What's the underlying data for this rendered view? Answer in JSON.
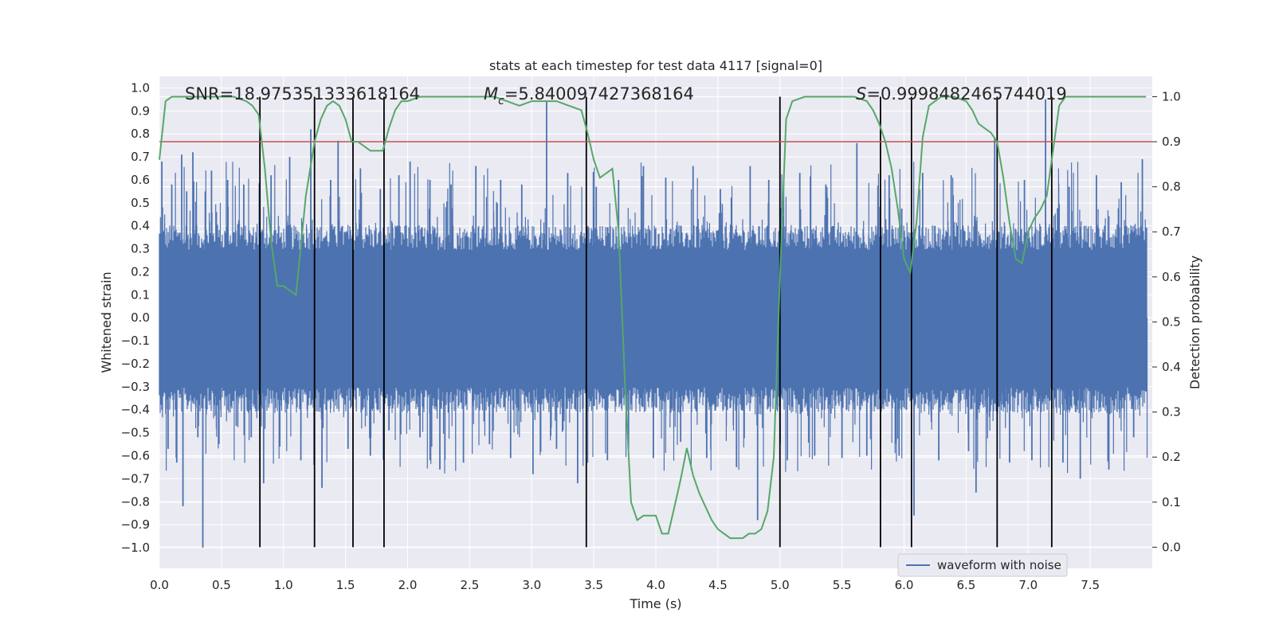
{
  "chart_data": {
    "type": "line",
    "title": "stats at each timestep for test data 4117 [signal=0]",
    "xlabel": "Time (s)",
    "ylabel": "Whitened strain",
    "y2label": "Detection probability",
    "xlim": [
      0.0,
      8.0
    ],
    "ylim": [
      -1.09,
      1.05
    ],
    "y2lim": [
      -0.047,
      1.045
    ],
    "x_ticks": [
      "0.0",
      "0.5",
      "1.0",
      "1.5",
      "2.0",
      "2.5",
      "3.0",
      "3.5",
      "4.0",
      "4.5",
      "5.0",
      "5.5",
      "6.0",
      "6.5",
      "7.0",
      "7.5"
    ],
    "x_tick_values": [
      0.0,
      0.5,
      1.0,
      1.5,
      2.0,
      2.5,
      3.0,
      3.5,
      4.0,
      4.5,
      5.0,
      5.5,
      6.0,
      6.5,
      7.0,
      7.5
    ],
    "y_ticks": [
      "1.0",
      "0.9",
      "0.8",
      "0.7",
      "0.6",
      "0.5",
      "0.4",
      "0.3",
      "0.2",
      "0.1",
      "0.0",
      "−0.1",
      "−0.2",
      "−0.3",
      "−0.4",
      "−0.5",
      "−0.6",
      "−0.7",
      "−0.8",
      "−0.9",
      "−1.0"
    ],
    "y_tick_values": [
      1.0,
      0.9,
      0.8,
      0.7,
      0.6,
      0.5,
      0.4,
      0.3,
      0.2,
      0.1,
      0.0,
      -0.1,
      -0.2,
      -0.3,
      -0.4,
      -0.5,
      -0.6,
      -0.7,
      -0.8,
      -0.9,
      -1.0
    ],
    "y2_ticks": [
      "1.0",
      "0.9",
      "0.8",
      "0.7",
      "0.6",
      "0.5",
      "0.4",
      "0.3",
      "0.2",
      "0.1",
      "0.0"
    ],
    "y2_tick_values": [
      1.0,
      0.9,
      0.8,
      0.7,
      0.6,
      0.5,
      0.4,
      0.3,
      0.2,
      0.1,
      0.0
    ],
    "annotations": {
      "snr": "SNR=18.975351333618164",
      "mc_symbol": "M",
      "mc_subscript": "c",
      "mc_value": "=5.840097427368164",
      "s_symbol": "S",
      "s_value": "=0.9998482465744019"
    },
    "legend": {
      "label": "waveform with noise",
      "location": "lower-right"
    },
    "threshold": 0.9,
    "vertical_markers": [
      0.81,
      1.25,
      1.56,
      1.81,
      3.44,
      5.0,
      5.81,
      6.06,
      6.75,
      7.19
    ],
    "waveform": {
      "name": "waveform with noise",
      "color": "#4c72b0",
      "x_range": [
        0.0,
        7.96
      ],
      "band_upper": 0.36,
      "band_lower": -0.37,
      "spikes": [
        [
          0.02,
          0.68
        ],
        [
          0.07,
          -0.57
        ],
        [
          0.1,
          0.58
        ],
        [
          0.14,
          -0.63
        ],
        [
          0.18,
          0.71
        ],
        [
          0.19,
          -0.82
        ],
        [
          0.22,
          0.55
        ],
        [
          0.27,
          0.72
        ],
        [
          0.31,
          -0.52
        ],
        [
          0.35,
          -1.0
        ],
        [
          0.37,
          0.55
        ],
        [
          0.42,
          0.64
        ],
        [
          0.48,
          -0.55
        ],
        [
          0.55,
          0.6
        ],
        [
          0.62,
          -0.47
        ],
        [
          0.68,
          0.58
        ],
        [
          0.74,
          -0.52
        ],
        [
          0.84,
          -0.72
        ],
        [
          0.9,
          0.62
        ],
        [
          0.97,
          -0.56
        ],
        [
          1.05,
          0.7
        ],
        [
          1.14,
          -0.62
        ],
        [
          1.22,
          0.82
        ],
        [
          1.31,
          -0.74
        ],
        [
          1.38,
          0.6
        ],
        [
          1.44,
          0.77
        ],
        [
          1.52,
          -0.57
        ],
        [
          1.62,
          0.65
        ],
        [
          1.7,
          -0.6
        ],
        [
          1.78,
          0.56
        ],
        [
          1.85,
          -0.49
        ],
        [
          1.93,
          0.62
        ],
        [
          2.02,
          0.68
        ],
        [
          2.1,
          -0.52
        ],
        [
          2.18,
          0.6
        ],
        [
          2.26,
          -0.66
        ],
        [
          2.35,
          0.58
        ],
        [
          2.45,
          -0.63
        ],
        [
          2.55,
          0.66
        ],
        [
          2.66,
          -0.55
        ],
        [
          2.75,
          0.6
        ],
        [
          2.83,
          -0.61
        ],
        [
          2.92,
          0.58
        ],
        [
          3.01,
          -0.68
        ],
        [
          3.12,
          0.94
        ],
        [
          3.2,
          -0.57
        ],
        [
          3.29,
          0.63
        ],
        [
          3.37,
          -0.72
        ],
        [
          3.52,
          0.57
        ],
        [
          3.61,
          -0.62
        ],
        [
          3.7,
          0.6
        ],
        [
          3.78,
          -0.57
        ],
        [
          3.9,
          0.66
        ],
        [
          3.98,
          -0.61
        ],
        [
          4.08,
          0.61
        ],
        [
          4.2,
          -0.54
        ],
        [
          4.3,
          0.66
        ],
        [
          4.41,
          -0.61
        ],
        [
          4.52,
          0.56
        ],
        [
          4.65,
          -0.65
        ],
        [
          4.76,
          0.66
        ],
        [
          4.82,
          -0.88
        ],
        [
          4.91,
          0.6
        ],
        [
          5.06,
          -0.62
        ],
        [
          5.16,
          0.63
        ],
        [
          5.28,
          -0.6
        ],
        [
          5.37,
          0.58
        ],
        [
          5.5,
          -0.61
        ],
        [
          5.62,
          0.76
        ],
        [
          5.7,
          -0.6
        ],
        [
          5.88,
          0.62
        ],
        [
          5.96,
          -0.6
        ],
        [
          6.08,
          -0.86
        ],
        [
          6.15,
          0.63
        ],
        [
          6.28,
          -0.62
        ],
        [
          6.38,
          0.62
        ],
        [
          6.52,
          -0.58
        ],
        [
          6.58,
          -0.76
        ],
        [
          6.73,
          0.78
        ],
        [
          6.85,
          -0.63
        ],
        [
          6.97,
          0.6
        ],
        [
          7.03,
          -0.62
        ],
        [
          7.14,
          0.95
        ],
        [
          7.28,
          -0.63
        ],
        [
          7.33,
          0.57
        ],
        [
          7.42,
          -0.7
        ],
        [
          7.55,
          0.62
        ],
        [
          7.65,
          -0.66
        ],
        [
          7.75,
          0.59
        ],
        [
          7.85,
          -0.52
        ],
        [
          7.92,
          0.69
        ]
      ]
    },
    "detection_probability": {
      "name": "Detection probability",
      "color": "#55a868",
      "x": [
        0.0,
        0.05,
        0.1,
        0.2,
        0.3,
        0.4,
        0.5,
        0.6,
        0.7,
        0.75,
        0.8,
        0.85,
        0.9,
        0.95,
        1.0,
        1.05,
        1.1,
        1.13,
        1.18,
        1.25,
        1.3,
        1.35,
        1.4,
        1.45,
        1.5,
        1.55,
        1.6,
        1.65,
        1.7,
        1.75,
        1.8,
        1.85,
        1.9,
        1.95,
        2.0,
        2.1,
        2.3,
        2.5,
        2.7,
        2.8,
        2.9,
        3.0,
        3.1,
        3.2,
        3.3,
        3.4,
        3.45,
        3.5,
        3.55,
        3.6,
        3.65,
        3.7,
        3.75,
        3.8,
        3.85,
        3.9,
        3.95,
        4.0,
        4.05,
        4.1,
        4.15,
        4.2,
        4.25,
        4.3,
        4.35,
        4.4,
        4.45,
        4.5,
        4.6,
        4.7,
        4.75,
        4.8,
        4.85,
        4.9,
        4.95,
        5.0,
        5.05,
        5.1,
        5.2,
        5.4,
        5.6,
        5.7,
        5.75,
        5.8,
        5.85,
        5.9,
        5.95,
        6.0,
        6.05,
        6.1,
        6.15,
        6.2,
        6.25,
        6.3,
        6.4,
        6.5,
        6.55,
        6.6,
        6.65,
        6.7,
        6.75,
        6.8,
        6.85,
        6.9,
        6.95,
        7.0,
        7.05,
        7.1,
        7.15,
        7.2,
        7.25,
        7.3,
        7.4,
        7.6,
        7.8,
        7.95
      ],
      "values": [
        0.86,
        0.99,
        1.0,
        1.0,
        1.0,
        1.0,
        1.0,
        1.0,
        0.99,
        0.98,
        0.96,
        0.84,
        0.68,
        0.58,
        0.58,
        0.57,
        0.56,
        0.64,
        0.78,
        0.9,
        0.95,
        0.98,
        0.99,
        0.98,
        0.95,
        0.9,
        0.9,
        0.89,
        0.88,
        0.88,
        0.88,
        0.93,
        0.97,
        0.99,
        0.99,
        1.0,
        1.0,
        1.0,
        1.0,
        0.99,
        0.98,
        0.99,
        0.99,
        0.99,
        0.98,
        0.97,
        0.92,
        0.86,
        0.82,
        0.83,
        0.84,
        0.7,
        0.37,
        0.1,
        0.06,
        0.07,
        0.07,
        0.07,
        0.03,
        0.03,
        0.09,
        0.15,
        0.22,
        0.16,
        0.12,
        0.09,
        0.06,
        0.04,
        0.02,
        0.02,
        0.03,
        0.03,
        0.04,
        0.08,
        0.2,
        0.6,
        0.95,
        0.99,
        1.0,
        1.0,
        1.0,
        0.99,
        0.97,
        0.94,
        0.9,
        0.84,
        0.75,
        0.64,
        0.61,
        0.72,
        0.91,
        0.98,
        0.99,
        1.0,
        1.0,
        0.99,
        0.97,
        0.94,
        0.93,
        0.92,
        0.9,
        0.82,
        0.72,
        0.64,
        0.63,
        0.7,
        0.73,
        0.75,
        0.78,
        0.88,
        0.98,
        1.0,
        1.0,
        1.0,
        1.0,
        1.0
      ]
    },
    "colors": {
      "background": "#eaeaf2",
      "grid": "#ffffff",
      "threshold": "#c44e52",
      "markers": "#000000"
    }
  }
}
